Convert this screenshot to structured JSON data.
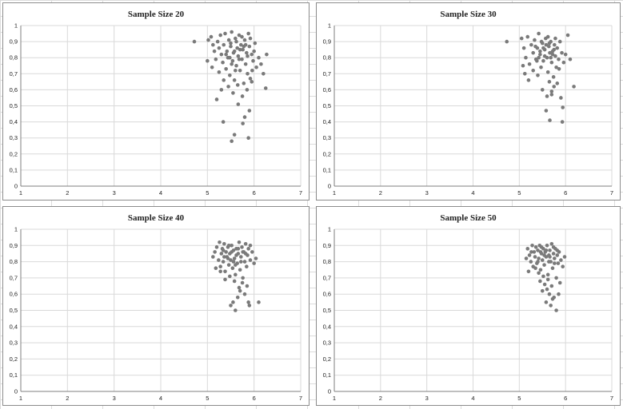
{
  "chart_data": [
    {
      "type": "scatter",
      "title": "Sample Size 20",
      "xlim": [
        1,
        7
      ],
      "ylim": [
        0,
        1
      ],
      "x_ticks": [
        "1",
        "2",
        "3",
        "4",
        "5",
        "6",
        "7"
      ],
      "y_ticks": [
        "0",
        "0,1",
        "0,2",
        "0,3",
        "0,4",
        "0,5",
        "0,6",
        "0,7",
        "0,8",
        "0,9",
        "1"
      ],
      "grid": true,
      "marker_color": "#7a7a7a",
      "points": [
        [
          4.72,
          0.9
        ],
        [
          5.02,
          0.91
        ],
        [
          5.08,
          0.93
        ],
        [
          5.12,
          0.88
        ],
        [
          5.15,
          0.84
        ],
        [
          5.18,
          0.79
        ],
        [
          5.22,
          0.9
        ],
        [
          5.25,
          0.86
        ],
        [
          5.28,
          0.94
        ],
        [
          5.3,
          0.82
        ],
        [
          5.33,
          0.77
        ],
        [
          5.35,
          0.88
        ],
        [
          5.38,
          0.95
        ],
        [
          5.4,
          0.73
        ],
        [
          5.42,
          0.84
        ],
        [
          5.44,
          0.8
        ],
        [
          5.46,
          0.91
        ],
        [
          5.48,
          0.69
        ],
        [
          5.5,
          0.87
        ],
        [
          5.52,
          0.96
        ],
        [
          5.54,
          0.78
        ],
        [
          5.56,
          0.83
        ],
        [
          5.58,
          0.66
        ],
        [
          5.6,
          0.92
        ],
        [
          5.62,
          0.75
        ],
        [
          5.64,
          0.86
        ],
        [
          5.66,
          0.81
        ],
        [
          5.68,
          0.94
        ],
        [
          5.7,
          0.72
        ],
        [
          5.72,
          0.88
        ],
        [
          5.74,
          0.79
        ],
        [
          5.76,
          0.85
        ],
        [
          5.78,
          0.64
        ],
        [
          5.8,
          0.91
        ],
        [
          5.82,
          0.76
        ],
        [
          5.84,
          0.83
        ],
        [
          5.86,
          0.7
        ],
        [
          5.88,
          0.95
        ],
        [
          5.9,
          0.87
        ],
        [
          5.92,
          0.67
        ],
        [
          5.95,
          0.82
        ],
        [
          5.98,
          0.78
        ],
        [
          6.02,
          0.89
        ],
        [
          6.05,
          0.74
        ],
        [
          6.1,
          0.8
        ],
        [
          6.15,
          0.76
        ],
        [
          6.2,
          0.7
        ],
        [
          6.27,
          0.82
        ],
        [
          6.25,
          0.61
        ],
        [
          5.25,
          0.71
        ],
        [
          5.3,
          0.6
        ],
        [
          5.2,
          0.54
        ],
        [
          5.35,
          0.66
        ],
        [
          5.45,
          0.62
        ],
        [
          5.55,
          0.58
        ],
        [
          5.65,
          0.63
        ],
        [
          5.75,
          0.56
        ],
        [
          5.85,
          0.6
        ],
        [
          5.95,
          0.65
        ],
        [
          5.6,
          0.72
        ],
        [
          5.7,
          0.85
        ],
        [
          5.5,
          0.89
        ],
        [
          5.4,
          0.82
        ],
        [
          5.62,
          0.9
        ],
        [
          5.78,
          0.87
        ],
        [
          5.68,
          0.79
        ],
        [
          5.52,
          0.76
        ],
        [
          5.74,
          0.93
        ],
        [
          5.58,
          0.84
        ],
        [
          5.82,
          0.88
        ],
        [
          5.92,
          0.92
        ],
        [
          5.48,
          0.8
        ],
        [
          5.86,
          0.81
        ],
        [
          5.34,
          0.4
        ],
        [
          5.58,
          0.32
        ],
        [
          5.52,
          0.28
        ],
        [
          5.8,
          0.43
        ],
        [
          5.76,
          0.39
        ],
        [
          5.9,
          0.47
        ],
        [
          5.88,
          0.3
        ],
        [
          5.66,
          0.51
        ],
        [
          5.1,
          0.74
        ],
        [
          5.0,
          0.78
        ],
        [
          6.0,
          0.84
        ],
        [
          5.96,
          0.72
        ]
      ]
    },
    {
      "type": "scatter",
      "title": "Sample Size 30",
      "xlim": [
        1,
        7
      ],
      "ylim": [
        0,
        1
      ],
      "x_ticks": [
        "1",
        "2",
        "3",
        "4",
        "5",
        "6",
        "7"
      ],
      "y_ticks": [
        "0",
        "0,1",
        "0,2",
        "0,3",
        "0,4",
        "0,5",
        "0,6",
        "0,7",
        "0,8",
        "0,9",
        "1"
      ],
      "grid": true,
      "marker_color": "#7a7a7a",
      "points": [
        [
          4.73,
          0.9
        ],
        [
          5.05,
          0.92
        ],
        [
          5.1,
          0.86
        ],
        [
          5.14,
          0.8
        ],
        [
          5.18,
          0.93
        ],
        [
          5.22,
          0.76
        ],
        [
          5.26,
          0.88
        ],
        [
          5.3,
          0.83
        ],
        [
          5.33,
          0.91
        ],
        [
          5.36,
          0.79
        ],
        [
          5.39,
          0.86
        ],
        [
          5.42,
          0.95
        ],
        [
          5.45,
          0.82
        ],
        [
          5.47,
          0.74
        ],
        [
          5.5,
          0.89
        ],
        [
          5.52,
          0.78
        ],
        [
          5.55,
          0.85
        ],
        [
          5.57,
          0.92
        ],
        [
          5.6,
          0.8
        ],
        [
          5.62,
          0.71
        ],
        [
          5.64,
          0.87
        ],
        [
          5.66,
          0.83
        ],
        [
          5.68,
          0.9
        ],
        [
          5.7,
          0.77
        ],
        [
          5.72,
          0.84
        ],
        [
          5.74,
          0.68
        ],
        [
          5.76,
          0.88
        ],
        [
          5.78,
          0.81
        ],
        [
          5.8,
          0.74
        ],
        [
          5.82,
          0.86
        ],
        [
          5.85,
          0.79
        ],
        [
          5.88,
          0.9
        ],
        [
          5.92,
          0.83
        ],
        [
          5.96,
          0.77
        ],
        [
          6.0,
          0.82
        ],
        [
          6.05,
          0.94
        ],
        [
          6.1,
          0.79
        ],
        [
          6.18,
          0.62
        ],
        [
          5.9,
          0.55
        ],
        [
          5.94,
          0.49
        ],
        [
          5.75,
          0.62
        ],
        [
          5.7,
          0.59
        ],
        [
          5.65,
          0.65
        ],
        [
          5.6,
          0.56
        ],
        [
          5.5,
          0.6
        ],
        [
          5.4,
          0.69
        ],
        [
          5.3,
          0.72
        ],
        [
          5.2,
          0.66
        ],
        [
          5.12,
          0.7
        ],
        [
          5.08,
          0.75
        ],
        [
          5.35,
          0.87
        ],
        [
          5.45,
          0.84
        ],
        [
          5.55,
          0.81
        ],
        [
          5.65,
          0.89
        ],
        [
          5.75,
          0.85
        ],
        [
          5.58,
          0.88
        ],
        [
          5.48,
          0.9
        ],
        [
          5.68,
          0.8
        ],
        [
          5.78,
          0.92
        ],
        [
          5.38,
          0.78
        ],
        [
          5.82,
          0.64
        ],
        [
          5.62,
          0.93
        ],
        [
          5.52,
          0.86
        ],
        [
          5.72,
          0.82
        ],
        [
          5.42,
          0.8
        ],
        [
          5.66,
          0.41
        ],
        [
          5.93,
          0.4
        ],
        [
          5.58,
          0.47
        ],
        [
          5.7,
          0.57
        ],
        [
          5.86,
          0.73
        ]
      ]
    },
    {
      "type": "scatter",
      "title": "Sample Size 40",
      "xlim": [
        1,
        7
      ],
      "ylim": [
        0,
        1
      ],
      "x_ticks": [
        "1",
        "2",
        "3",
        "4",
        "5",
        "6",
        "7"
      ],
      "y_ticks": [
        "0",
        "0,1",
        "0,2",
        "0,3",
        "0,4",
        "0,5",
        "0,6",
        "0,7",
        "0,8",
        "0,9",
        "1"
      ],
      "grid": true,
      "marker_color": "#7a7a7a",
      "points": [
        [
          5.12,
          0.83
        ],
        [
          5.16,
          0.86
        ],
        [
          5.2,
          0.89
        ],
        [
          5.24,
          0.81
        ],
        [
          5.26,
          0.92
        ],
        [
          5.28,
          0.77
        ],
        [
          5.3,
          0.85
        ],
        [
          5.32,
          0.88
        ],
        [
          5.34,
          0.8
        ],
        [
          5.36,
          0.91
        ],
        [
          5.38,
          0.74
        ],
        [
          5.4,
          0.86
        ],
        [
          5.42,
          0.83
        ],
        [
          5.44,
          0.89
        ],
        [
          5.46,
          0.78
        ],
        [
          5.48,
          0.85
        ],
        [
          5.5,
          0.81
        ],
        [
          5.52,
          0.9
        ],
        [
          5.54,
          0.76
        ],
        [
          5.56,
          0.87
        ],
        [
          5.58,
          0.82
        ],
        [
          5.6,
          0.72
        ],
        [
          5.62,
          0.88
        ],
        [
          5.64,
          0.79
        ],
        [
          5.66,
          0.85
        ],
        [
          5.68,
          0.92
        ],
        [
          5.7,
          0.75
        ],
        [
          5.72,
          0.83
        ],
        [
          5.74,
          0.89
        ],
        [
          5.76,
          0.7
        ],
        [
          5.78,
          0.86
        ],
        [
          5.8,
          0.8
        ],
        [
          5.82,
          0.91
        ],
        [
          5.84,
          0.77
        ],
        [
          5.86,
          0.84
        ],
        [
          5.88,
          0.88
        ],
        [
          5.92,
          0.81
        ],
        [
          5.96,
          0.86
        ],
        [
          6.0,
          0.79
        ],
        [
          6.04,
          0.82
        ],
        [
          5.85,
          0.65
        ],
        [
          5.8,
          0.6
        ],
        [
          5.7,
          0.62
        ],
        [
          5.65,
          0.58
        ],
        [
          5.55,
          0.55
        ],
        [
          5.5,
          0.53
        ],
        [
          5.6,
          0.5
        ],
        [
          5.88,
          0.55
        ],
        [
          5.9,
          0.53
        ],
        [
          6.1,
          0.55
        ],
        [
          5.75,
          0.67
        ],
        [
          5.68,
          0.64
        ],
        [
          5.58,
          0.68
        ],
        [
          5.48,
          0.71
        ],
        [
          5.38,
          0.69
        ],
        [
          5.28,
          0.74
        ],
        [
          5.18,
          0.76
        ],
        [
          5.62,
          0.84
        ],
        [
          5.52,
          0.86
        ],
        [
          5.44,
          0.82
        ],
        [
          5.34,
          0.87
        ],
        [
          5.72,
          0.8
        ],
        [
          5.82,
          0.85
        ],
        [
          5.92,
          0.9
        ],
        [
          5.66,
          0.88
        ],
        [
          5.56,
          0.8
        ],
        [
          5.46,
          0.9
        ],
        [
          5.76,
          0.86
        ],
        [
          5.36,
          0.83
        ],
        [
          5.6,
          0.78
        ]
      ]
    },
    {
      "type": "scatter",
      "title": "Sample Size 50",
      "xlim": [
        1,
        7
      ],
      "ylim": [
        0,
        1
      ],
      "x_ticks": [
        "1",
        "2",
        "3",
        "4",
        "5",
        "6",
        "7"
      ],
      "y_ticks": [
        "0",
        "0,1",
        "0,2",
        "0,3",
        "0,4",
        "0,5",
        "0,6",
        "0,7",
        "0,8",
        "0,9",
        "1"
      ],
      "grid": true,
      "marker_color": "#7a7a7a",
      "points": [
        [
          5.18,
          0.88
        ],
        [
          5.22,
          0.84
        ],
        [
          5.25,
          0.8
        ],
        [
          5.28,
          0.9
        ],
        [
          5.3,
          0.77
        ],
        [
          5.32,
          0.86
        ],
        [
          5.34,
          0.83
        ],
        [
          5.36,
          0.89
        ],
        [
          5.38,
          0.79
        ],
        [
          5.4,
          0.87
        ],
        [
          5.42,
          0.82
        ],
        [
          5.44,
          0.9
        ],
        [
          5.46,
          0.75
        ],
        [
          5.48,
          0.85
        ],
        [
          5.5,
          0.81
        ],
        [
          5.52,
          0.88
        ],
        [
          5.54,
          0.78
        ],
        [
          5.56,
          0.86
        ],
        [
          5.58,
          0.83
        ],
        [
          5.6,
          0.9
        ],
        [
          5.62,
          0.72
        ],
        [
          5.64,
          0.84
        ],
        [
          5.66,
          0.87
        ],
        [
          5.68,
          0.8
        ],
        [
          5.7,
          0.91
        ],
        [
          5.72,
          0.76
        ],
        [
          5.74,
          0.85
        ],
        [
          5.76,
          0.82
        ],
        [
          5.78,
          0.88
        ],
        [
          5.8,
          0.7
        ],
        [
          5.82,
          0.84
        ],
        [
          5.84,
          0.79
        ],
        [
          5.86,
          0.86
        ],
        [
          5.9,
          0.81
        ],
        [
          5.94,
          0.77
        ],
        [
          5.98,
          0.83
        ],
        [
          5.15,
          0.82
        ],
        [
          5.2,
          0.74
        ],
        [
          5.45,
          0.68
        ],
        [
          5.55,
          0.66
        ],
        [
          5.6,
          0.63
        ],
        [
          5.65,
          0.6
        ],
        [
          5.7,
          0.65
        ],
        [
          5.75,
          0.58
        ],
        [
          5.5,
          0.62
        ],
        [
          5.58,
          0.55
        ],
        [
          5.68,
          0.53
        ],
        [
          5.8,
          0.5
        ],
        [
          5.72,
          0.57
        ],
        [
          5.85,
          0.6
        ],
        [
          5.88,
          0.67
        ],
        [
          5.62,
          0.69
        ],
        [
          5.52,
          0.71
        ],
        [
          5.42,
          0.73
        ],
        [
          5.35,
          0.76
        ],
        [
          5.26,
          0.86
        ],
        [
          5.48,
          0.89
        ],
        [
          5.58,
          0.87
        ],
        [
          5.66,
          0.83
        ],
        [
          5.74,
          0.89
        ],
        [
          5.82,
          0.87
        ],
        [
          5.4,
          0.8
        ],
        [
          5.64,
          0.8
        ],
        [
          5.54,
          0.84
        ],
        [
          5.76,
          0.79
        ],
        [
          5.46,
          0.86
        ]
      ]
    }
  ]
}
